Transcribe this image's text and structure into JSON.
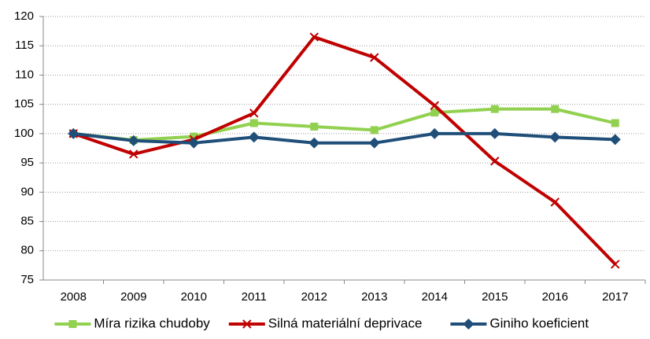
{
  "chart_data": {
    "type": "line",
    "categories": [
      "2008",
      "2009",
      "2010",
      "2011",
      "2012",
      "2013",
      "2014",
      "2015",
      "2016",
      "2017"
    ],
    "series": [
      {
        "name": "Míra rizika chudoby",
        "color": "#92d050",
        "marker": "square",
        "values": [
          100,
          98.9,
          99.5,
          101.8,
          101.2,
          100.6,
          103.6,
          104.2,
          104.2,
          101.8
        ]
      },
      {
        "name": "Silná materiální deprivace",
        "color": "#c00000",
        "marker": "x",
        "values": [
          100,
          96.5,
          99,
          103.5,
          116.5,
          113,
          104.8,
          95.3,
          88.3,
          77.7
        ]
      },
      {
        "name": "Giniho koeficient",
        "color": "#1f4e79",
        "marker": "diamond",
        "values": [
          100,
          98.8,
          98.4,
          99.4,
          98.4,
          98.4,
          100,
          100,
          99.4,
          99.0
        ]
      }
    ],
    "ylim": [
      75,
      120
    ],
    "yticks": [
      75,
      80,
      85,
      90,
      95,
      100,
      105,
      110,
      115,
      120
    ],
    "grid": true,
    "legend": "bottom"
  }
}
